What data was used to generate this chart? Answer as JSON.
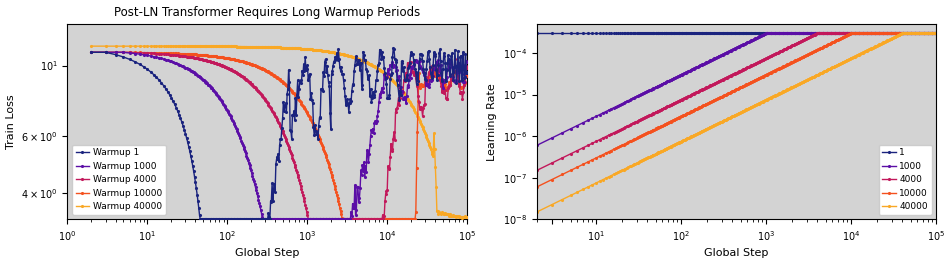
{
  "title": "Post-LN Transformer Requires Long Warmup Periods",
  "warmup_steps": [
    1,
    1000,
    4000,
    10000,
    40000
  ],
  "colors_left": [
    "#1a237e",
    "#5b0ea6",
    "#c2185b",
    "#f4511e",
    "#f9a825"
  ],
  "colors_right": [
    "#1a237e",
    "#5b0ea6",
    "#c2185b",
    "#f4511e",
    "#f9a825"
  ],
  "max_lr": 0.0003,
  "total_steps": 100000,
  "left_ylabel": "Train Loss",
  "right_ylabel": "Learning Rate",
  "xlabel": "Global Step",
  "bg_color": "#d3d3d3",
  "marker": ".",
  "marker_size": 2.5,
  "line_width": 1.0,
  "left_xlim": [
    1,
    100000
  ],
  "left_ylim": [
    3.3,
    13.5
  ],
  "right_xlim": [
    2,
    100000
  ],
  "right_ylim": [
    1e-08,
    0.0005
  ],
  "title_fontsize": 8.5,
  "axis_fontsize": 8,
  "tick_fontsize": 7,
  "legend_fontsize": 6.5
}
